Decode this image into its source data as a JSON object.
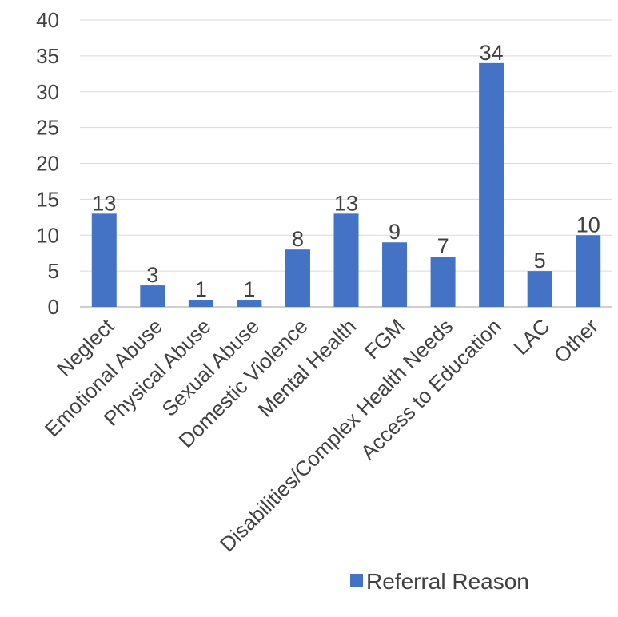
{
  "chart_data": {
    "type": "bar",
    "categories": [
      "Neglect",
      "Emotional Abuse",
      "Physical Abuse",
      "Sexual Abuse",
      "Domestic Violence",
      "Mental Health",
      "FGM",
      "Disabilities/Complex Health Needs",
      "Access to Education",
      "LAC",
      "Other"
    ],
    "series": [
      {
        "name": "Referral Reason",
        "values": [
          13,
          3,
          1,
          1,
          8,
          13,
          9,
          7,
          34,
          5,
          10
        ],
        "color": "#4472C4"
      }
    ],
    "ylim": [
      0,
      40
    ],
    "yticks": [
      0,
      5,
      10,
      15,
      20,
      25,
      30,
      35,
      40
    ],
    "grid": true,
    "legend": "bottom-right",
    "data_labels": true
  }
}
